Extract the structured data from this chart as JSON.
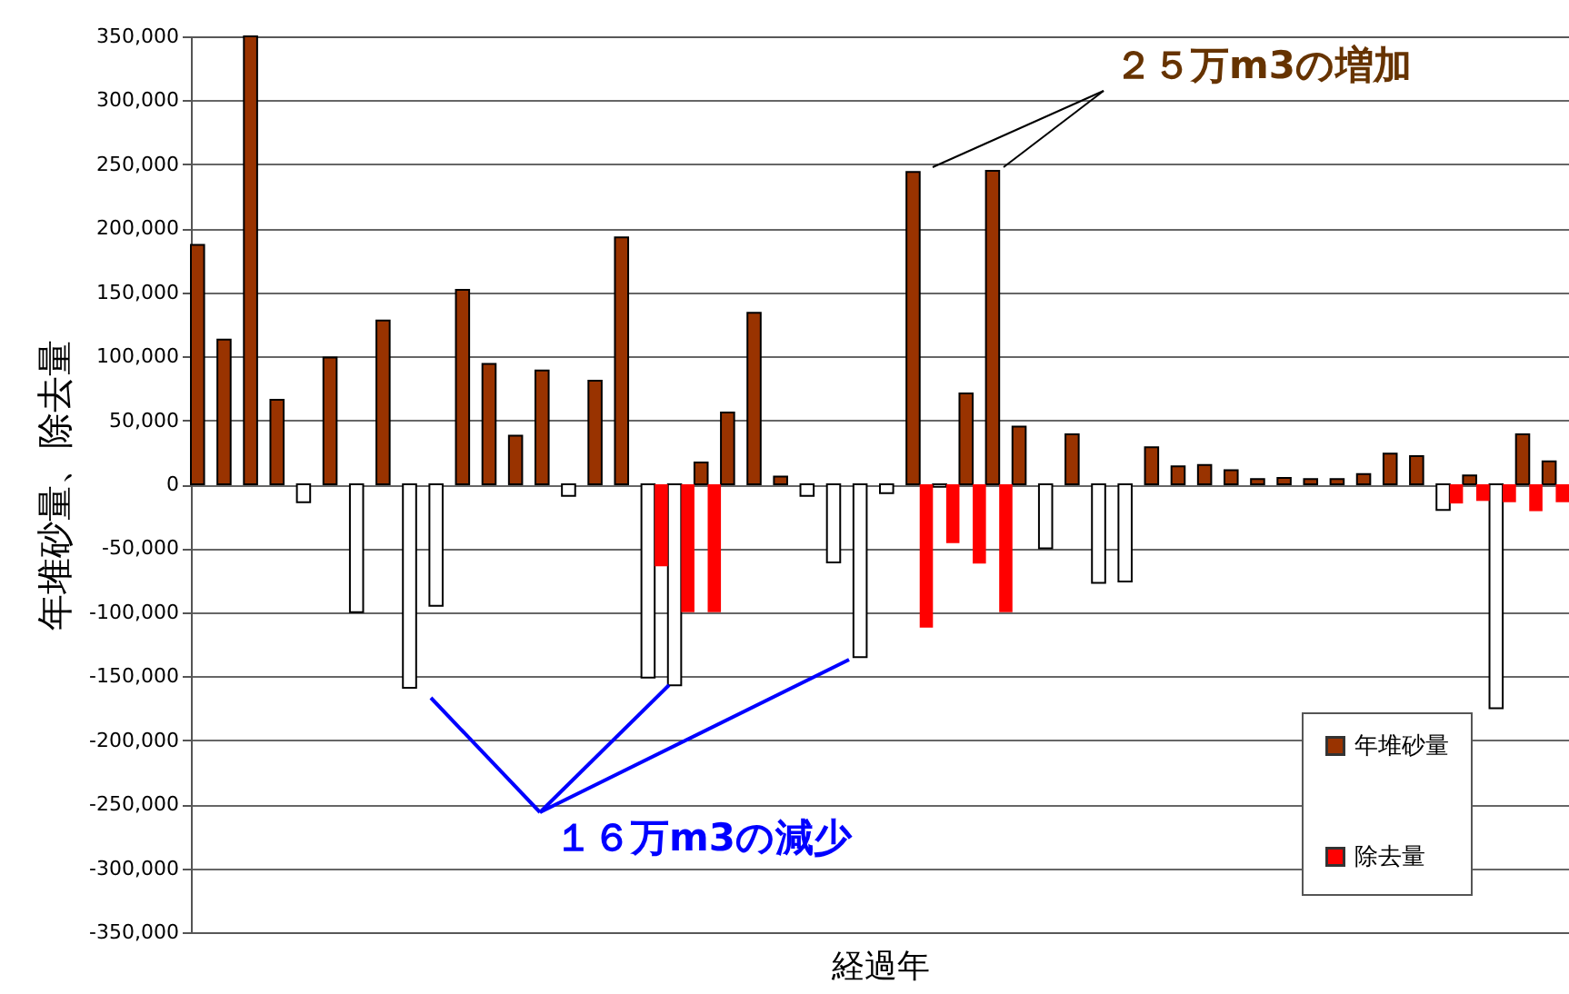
{
  "chart_data": {
    "type": "bar",
    "xlabel": "経過年",
    "ylabel": "年堆砂量、除去量",
    "categories": [
      null,
      null,
      null,
      null,
      null,
      null,
      null,
      null,
      null,
      null,
      null,
      null,
      null,
      null,
      null,
      null,
      null,
      null,
      null,
      null,
      null,
      null,
      null,
      null,
      null,
      null,
      null,
      null,
      null,
      null,
      null,
      null,
      null,
      null,
      null,
      null,
      null,
      null,
      null,
      null,
      null,
      null,
      null,
      null,
      null,
      null,
      null,
      null,
      null,
      null,
      null,
      null
    ],
    "series": [
      {
        "name": "年堆砂量",
        "color": "#993300",
        "values": [
          187000,
          113000,
          350000,
          66000,
          -14000,
          99000,
          -100000,
          128000,
          -159000,
          -95000,
          152000,
          94000,
          38000,
          89000,
          -9000,
          81000,
          193000,
          -151000,
          -157000,
          17000,
          56000,
          134000,
          6000,
          -9000,
          -61000,
          -135000,
          -7000,
          244000,
          -2000,
          71000,
          245000,
          45000,
          -50000,
          39000,
          -77000,
          -76000,
          29000,
          14000,
          15000,
          11000,
          4000,
          5000,
          4000,
          4000,
          8000,
          24000,
          22000,
          -20000,
          7000,
          -175000,
          39000,
          18000
        ],
        "colors": [
          "#993300",
          "#993300",
          "#993300",
          "#993300",
          "#ffffff",
          "#993300",
          "#ffffff",
          "#993300",
          "#ffffff",
          "#ffffff",
          "#993300",
          "#993300",
          "#993300",
          "#993300",
          "#ffffff",
          "#993300",
          "#993300",
          "#ffffff",
          "#ffffff",
          "#993300",
          "#993300",
          "#993300",
          "#993300",
          "#ffffff",
          "#ffffff",
          "#ffffff",
          "#ffffff",
          "#993300",
          "#ffffff",
          "#993300",
          "#993300",
          "#993300",
          "#ffffff",
          "#993300",
          "#ffffff",
          "#ffffff",
          "#993300",
          "#993300",
          "#993300",
          "#993300",
          "#993300",
          "#993300",
          "#993300",
          "#993300",
          "#993300",
          "#993300",
          "#993300",
          "#ffffff",
          "#993300",
          "#ffffff",
          "#993300",
          "#993300"
        ]
      },
      {
        "name": "除去量",
        "color": "#ff0000",
        "values": [
          null,
          null,
          null,
          null,
          null,
          null,
          null,
          null,
          null,
          null,
          null,
          null,
          null,
          null,
          null,
          null,
          null,
          -64000,
          -100000,
          -100000,
          null,
          null,
          null,
          null,
          null,
          null,
          null,
          -112000,
          -46000,
          -62000,
          -100000,
          null,
          null,
          null,
          null,
          null,
          null,
          null,
          null,
          null,
          null,
          null,
          null,
          null,
          null,
          null,
          null,
          -15000,
          -13000,
          -14000,
          -21000,
          -14000
        ]
      }
    ],
    "ylim": [
      -350000,
      350000
    ],
    "yticks": [
      {
        "value": -350000,
        "label": "-350,000"
      },
      {
        "value": -300000,
        "label": "-300,000"
      },
      {
        "value": -250000,
        "label": "-250,000"
      },
      {
        "value": -200000,
        "label": "-200,000"
      },
      {
        "value": -150000,
        "label": "-150,000"
      },
      {
        "value": -100000,
        "label": "-100,000"
      },
      {
        "value": -50000,
        "label": "-50,000"
      },
      0,
      {
        "value": 50000,
        "label": "50,000"
      },
      {
        "value": 100000,
        "label": "100,000"
      },
      {
        "value": 150000,
        "label": "150,000"
      },
      {
        "value": 200000,
        "label": "200,000"
      },
      {
        "value": 250000,
        "label": "250,000"
      },
      {
        "value": 300000,
        "label": "300,000"
      },
      {
        "value": 350000,
        "label": "350,000"
      }
    ],
    "grid": "y",
    "legend": "bottom right",
    "tick_labels": "y",
    "annotations": [
      "２５万m3の増加",
      "１６万m3の減少"
    ]
  }
}
